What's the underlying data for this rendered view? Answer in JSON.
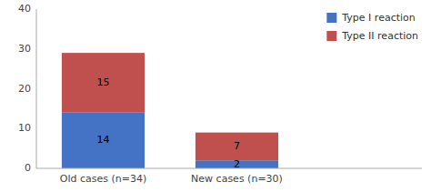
{
  "chart_data": {
    "type": "bar",
    "stacked": true,
    "data_labels": true,
    "legend": "upper right",
    "grid": false,
    "categories": [
      "Old cases (n=34)",
      "New cases (n=30)"
    ],
    "series": [
      {
        "name": "Type I reaction",
        "color": "#4472C4",
        "values": [
          14,
          2
        ]
      },
      {
        "name": "Type II reaction",
        "color": "#C0504D",
        "values": [
          15,
          7
        ]
      }
    ],
    "ylim": [
      0,
      40
    ],
    "yticks": [
      0,
      10,
      20,
      30,
      40
    ]
  }
}
